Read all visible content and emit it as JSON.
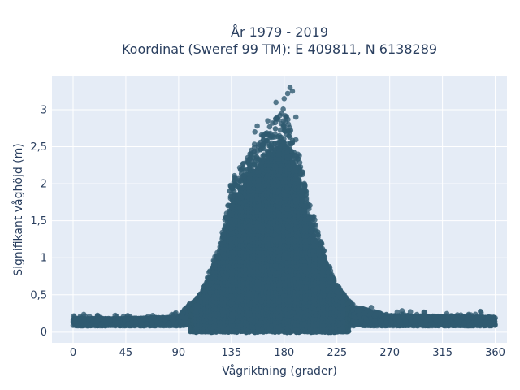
{
  "chart_data": {
    "type": "scatter",
    "title_line1": "År 1979 - 2019",
    "title_line2": "Koordinat (Sweref 99 TM): E 409811, N 6138289",
    "xlabel": "Vågriktning (grader)",
    "ylabel": "Signifikant våghöjd (m)",
    "xlim": [
      -18,
      370
    ],
    "ylim": [
      -0.15,
      3.45
    ],
    "xticks": [
      0,
      45,
      90,
      135,
      180,
      225,
      270,
      315,
      360
    ],
    "xtick_labels": [
      "0",
      "45",
      "90",
      "135",
      "180",
      "225",
      "270",
      "315",
      "360"
    ],
    "yticks": [
      0,
      0.5,
      1,
      1.5,
      2,
      2.5,
      3
    ],
    "ytick_labels": [
      "0",
      "0,5",
      "1",
      "1,5",
      "2",
      "2,5",
      "3"
    ],
    "grid": true,
    "marker_color": "#2f5a70",
    "plot_background": "#e5ecf6",
    "grid_color": "#ffffff",
    "envelope": {
      "description_points": [
        [
          0,
          0.14
        ],
        [
          45,
          0.14
        ],
        [
          90,
          0.16
        ],
        [
          110,
          0.55
        ],
        [
          125,
          1.2
        ],
        [
          135,
          2.05
        ],
        [
          150,
          2.45
        ],
        [
          165,
          2.75
        ],
        [
          180,
          3.05
        ],
        [
          190,
          2.6
        ],
        [
          200,
          1.85
        ],
        [
          212,
          1.2
        ],
        [
          225,
          0.65
        ],
        [
          240,
          0.3
        ],
        [
          270,
          0.18
        ],
        [
          315,
          0.17
        ],
        [
          360,
          0.16
        ]
      ]
    },
    "outliers": [
      [
        185,
        3.3
      ],
      [
        183,
        3.22
      ],
      [
        187,
        3.25
      ],
      [
        180,
        3.15
      ],
      [
        173,
        3.1
      ],
      [
        157,
        2.78
      ],
      [
        155,
        2.7
      ],
      [
        178,
        2.95
      ],
      [
        190,
        2.9
      ],
      [
        166,
        2.85
      ]
    ]
  }
}
